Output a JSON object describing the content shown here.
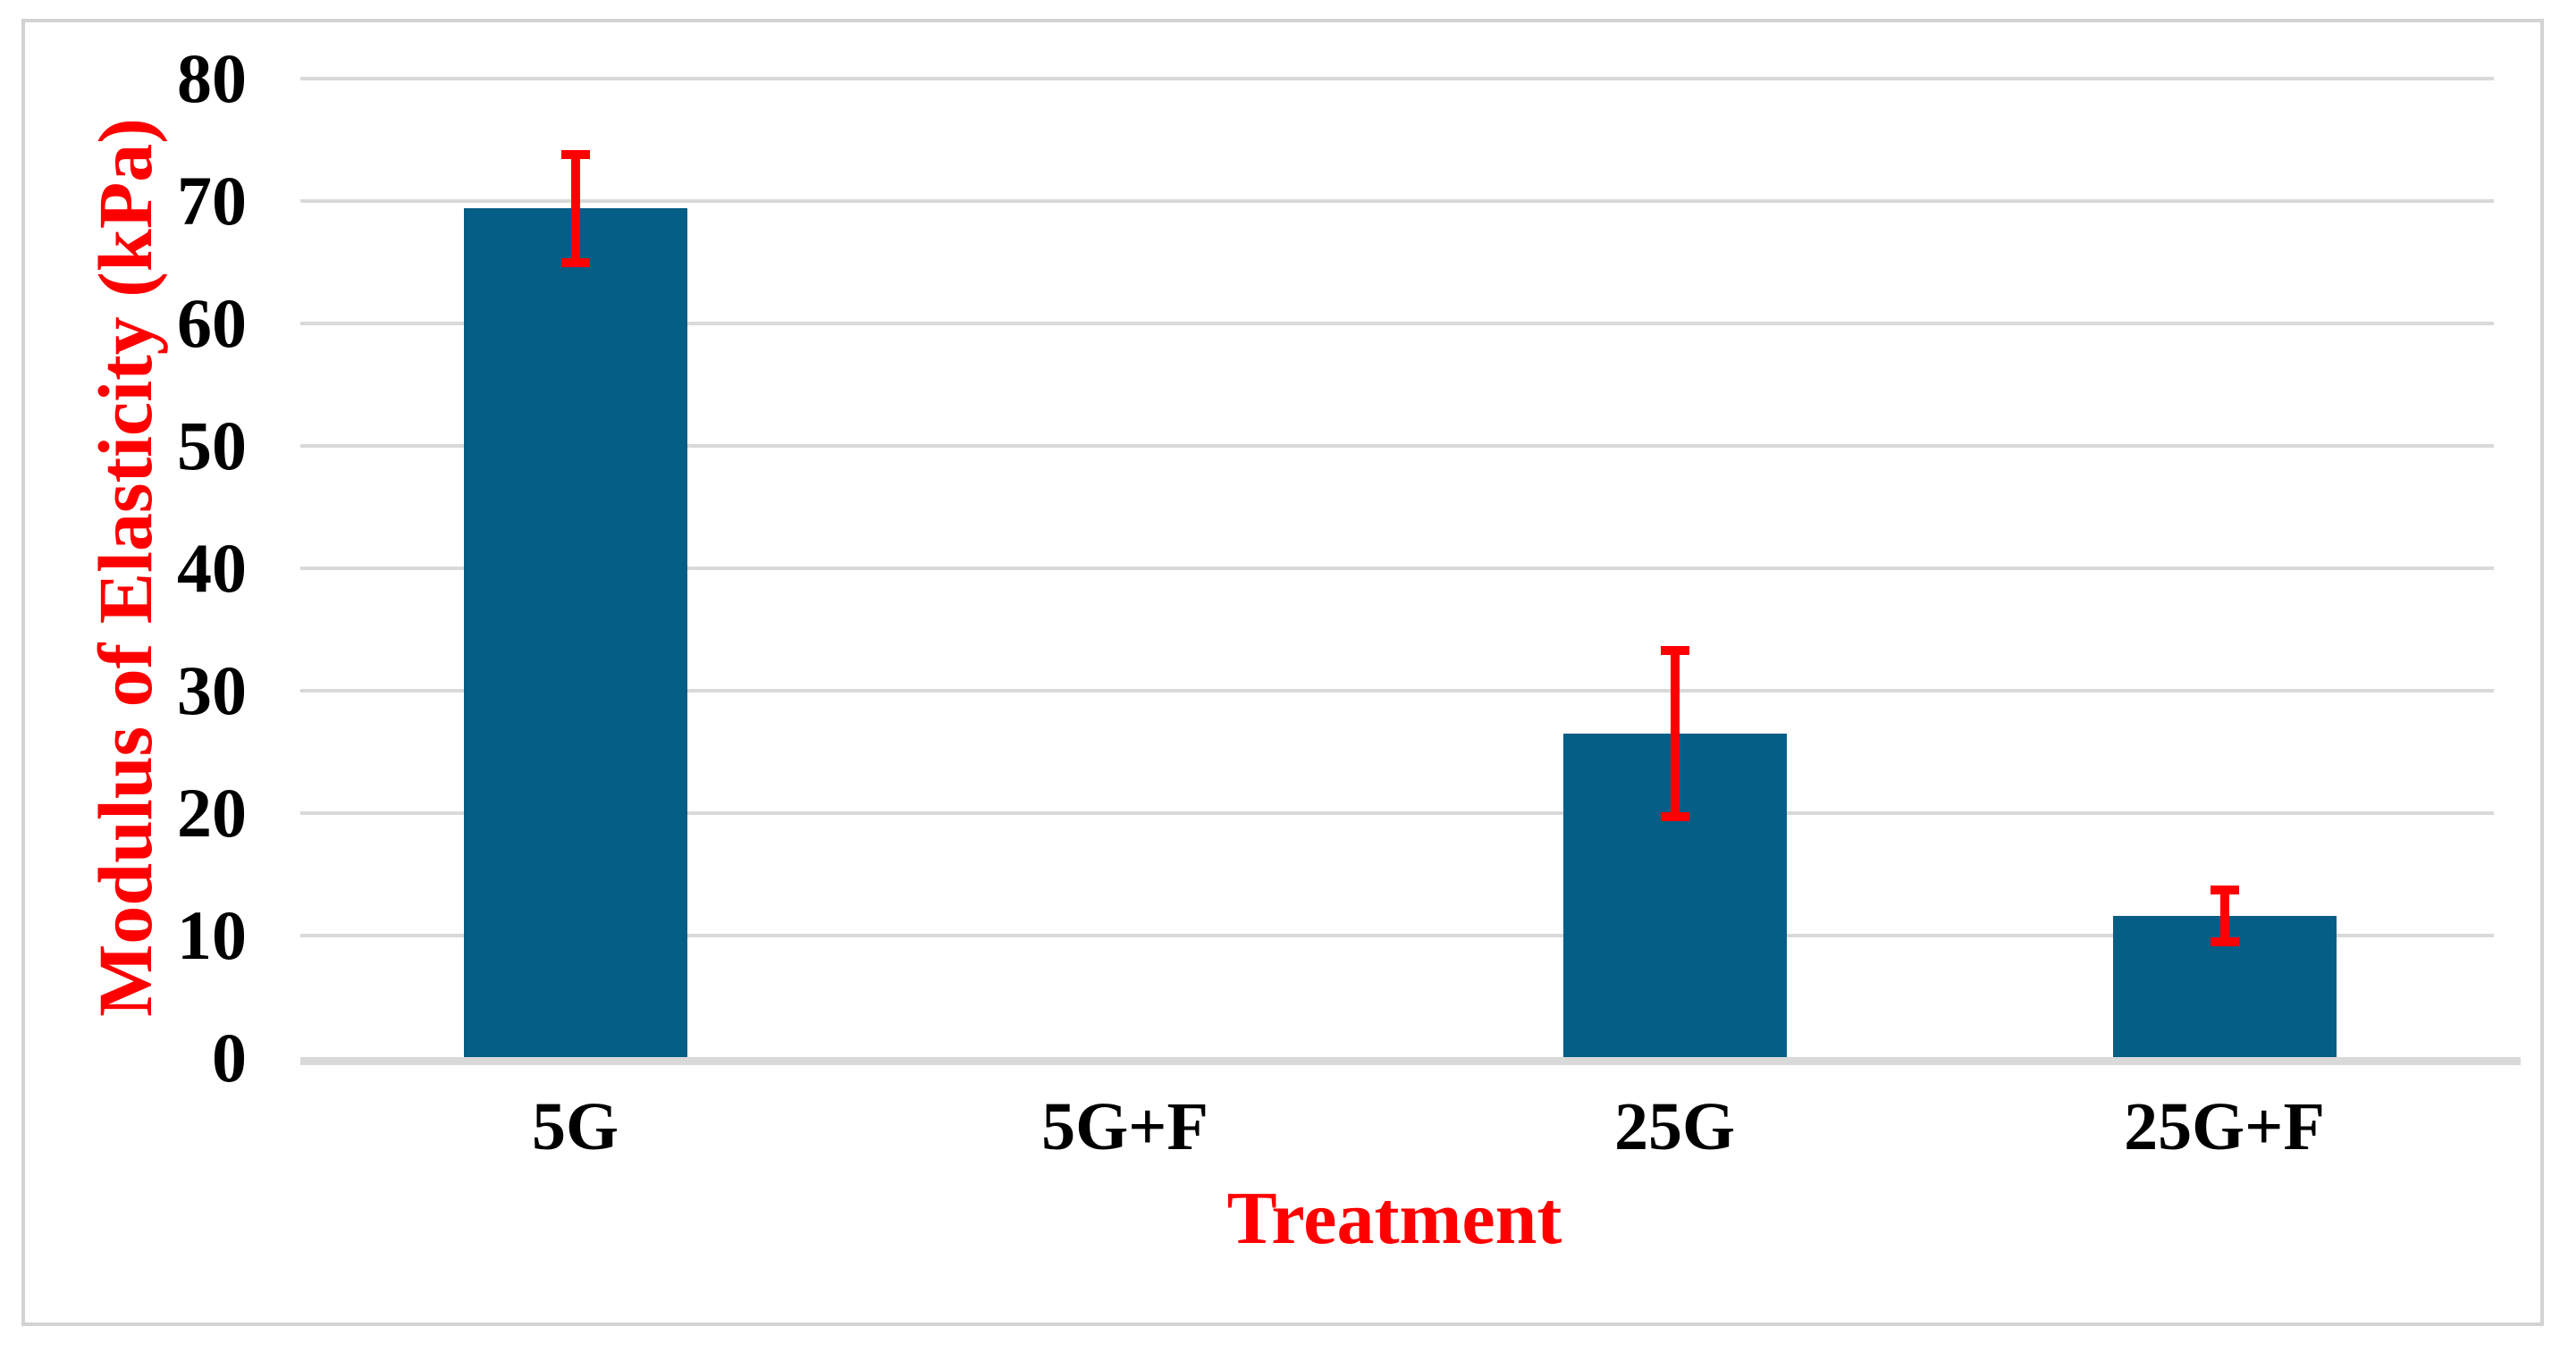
{
  "figure": {
    "background_color": "#FFFFFF",
    "border_color": "#D3D3D3"
  },
  "chart_data": {
    "type": "bar",
    "title": "",
    "xlabel": "Treatment",
    "ylabel": "Modulus of Elasticity (kPa)",
    "categories": [
      "5G",
      "5G+F",
      "25G",
      "25G+F"
    ],
    "values": [
      69.4,
      0,
      26.5,
      11.6
    ],
    "error_bars": [
      4.4,
      0,
      6.8,
      2.1
    ],
    "ylim": [
      0,
      80
    ],
    "yticks": [
      0,
      10,
      20,
      30,
      40,
      50,
      60,
      70,
      80
    ],
    "ytick_labels": [
      "0",
      "10",
      "20",
      "30",
      "40",
      "50",
      "60",
      "70",
      "80"
    ],
    "grid": true,
    "legend_position": "none",
    "bar_color": "#045E86",
    "error_bar_color": "#FF0000",
    "axis_title_color": "#FF0000",
    "tick_label_color": "#000000",
    "gridline_color": "#D9D9D9",
    "axis_line_color": "#D9D9D9"
  }
}
